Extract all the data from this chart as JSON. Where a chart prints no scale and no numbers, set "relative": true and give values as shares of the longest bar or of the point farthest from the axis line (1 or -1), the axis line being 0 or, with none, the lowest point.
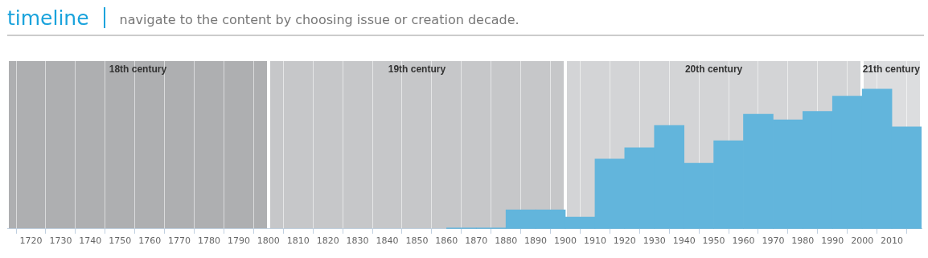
{
  "chart_data": {
    "type": "bar",
    "title": "timeline",
    "subtitle": "navigate to the content by choosing issue or creation decade.",
    "relative": true,
    "color": "#62b5dc",
    "x": [
      1865,
      1875,
      1885,
      1895,
      1905,
      1915,
      1925,
      1935,
      1945,
      1955,
      1965,
      1975,
      1985,
      1995,
      2005,
      2015
    ],
    "values": [
      0.007,
      0.007,
      0.136,
      0.136,
      0.084,
      0.5,
      0.58,
      0.74,
      0.47,
      0.63,
      0.82,
      0.78,
      0.84,
      0.95,
      1,
      0.73
    ],
    "xlim": [
      1712,
      2020
    ],
    "xticks": [
      1720,
      1730,
      1740,
      1750,
      1760,
      1770,
      1780,
      1790,
      1800,
      1810,
      1820,
      1830,
      1840,
      1850,
      1860,
      1870,
      1880,
      1890,
      1900,
      1910,
      1920,
      1930,
      1940,
      1950,
      1960,
      1970,
      1980,
      1990,
      2000,
      2010
    ],
    "bands": [
      {
        "axis": "x",
        "from": 1712,
        "to": 1800,
        "label": "18th century",
        "color": "#aeafb1"
      },
      {
        "axis": "x",
        "from": 1800,
        "to": 1900,
        "label": "19th century",
        "color": "#c6c7c9"
      },
      {
        "axis": "x",
        "from": 1900,
        "to": 2000,
        "label": "20th century",
        "color": "#d3d4d6"
      },
      {
        "axis": "x",
        "from": 2000,
        "to": 2020,
        "label": "21th century",
        "color": "#dcdddf"
      }
    ],
    "grid": "x",
    "legend": false
  }
}
